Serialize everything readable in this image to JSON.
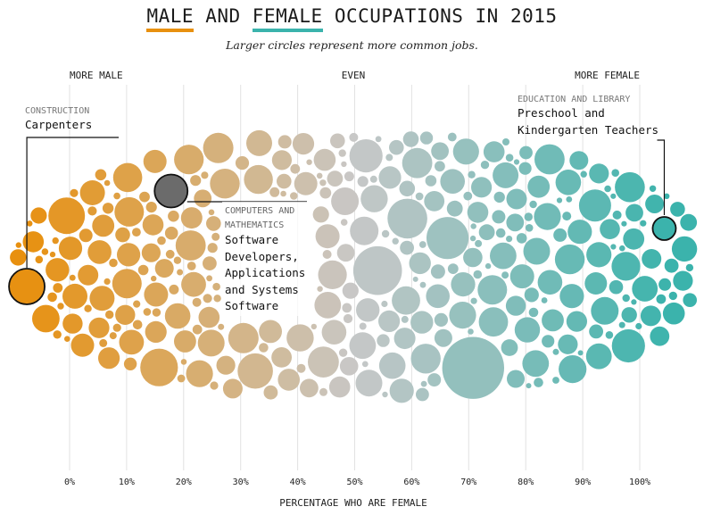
{
  "title": {
    "word_male": "MALE",
    "and1": "AND",
    "word_female": "FEMALE",
    "rest": "OCCUPATIONS IN 2015"
  },
  "subtitle": "Larger circles represent more common jobs.",
  "colors": {
    "male": "#e8900f",
    "even": "#c8c8c8",
    "female": "#3bb3ac",
    "highlight_gray": "#6b6b6b",
    "grid": "#e2e2e2"
  },
  "chart_data": {
    "type": "scatter",
    "title": "MALE AND FEMALE OCCUPATIONS IN 2015",
    "xlabel": "PERCENTAGE WHO ARE FEMALE",
    "ylabel": "",
    "xlim": [
      -10,
      110
    ],
    "x_ticks": [
      0,
      10,
      20,
      30,
      40,
      50,
      60,
      70,
      80,
      90,
      100
    ],
    "x_tick_labels": [
      "0%",
      "10%",
      "20%",
      "30%",
      "40%",
      "50%",
      "60%",
      "70%",
      "80%",
      "90%",
      "100%"
    ],
    "grid": true,
    "top_labels": {
      "left": "MORE MALE",
      "center": "EVEN",
      "right": "MORE FEMALE"
    },
    "highlighted": [
      {
        "category": "CONSTRUCTION",
        "occupation": "Carpenters",
        "pct_female": -7,
        "size": "medium"
      },
      {
        "category": "COMPUTERS AND MATHEMATICS",
        "occupation": "Software Developers, Applications and Systems Software",
        "pct_female": 18,
        "size": "medium"
      },
      {
        "category": "EDUCATION AND LIBRARY",
        "occupation": "Preschool and Kindergarten Teachers",
        "pct_female": 104,
        "size": "medium"
      }
    ],
    "occupations_note": "Each circle is one occupation; horizontal position = percent female; circle area = number of workers."
  },
  "annotations": {
    "construction": {
      "category": "CONSTRUCTION",
      "name": "Carpenters"
    },
    "computers": {
      "category_line1": "COMPUTERS AND",
      "category_line2": "MATHEMATICS",
      "lines": [
        "Software",
        "Developers,",
        "Applications",
        "and Systems",
        "Software"
      ]
    },
    "education": {
      "category": "EDUCATION AND LIBRARY",
      "line1": "Preschool and",
      "line2": "Kindergarten Teachers"
    }
  }
}
